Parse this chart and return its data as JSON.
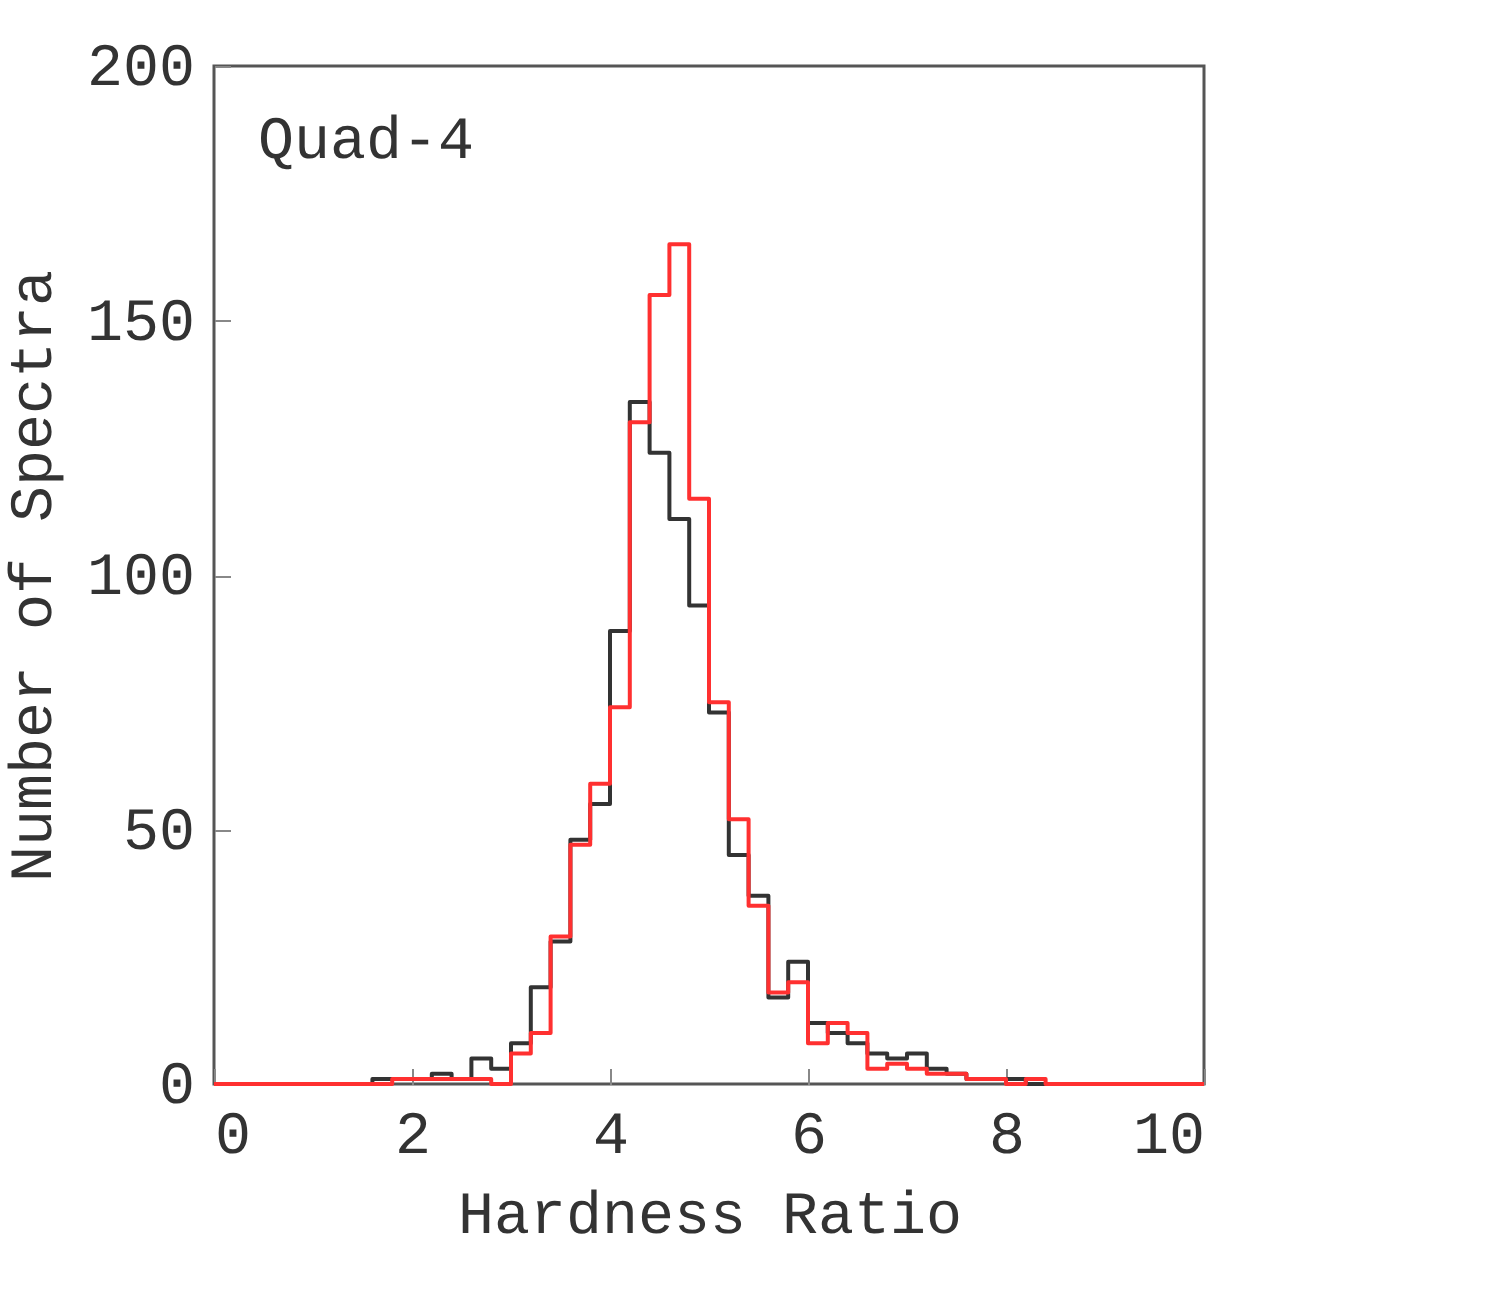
{
  "chart_data": {
    "type": "histogram",
    "xlabel": "Hardness Ratio",
    "ylabel": "Number of Spectra",
    "annotations": [
      "Quad-4"
    ],
    "bins": [
      0,
      0.2,
      0.4,
      0.6,
      0.8,
      1,
      1.2,
      1.4,
      1.6,
      1.8,
      2,
      2.2,
      2.4,
      2.6,
      2.8,
      3,
      3.2,
      3.4,
      3.6,
      3.8,
      4,
      4.2,
      4.4,
      4.6,
      4.8,
      5,
      5.2,
      5.4,
      5.6,
      5.8,
      6,
      6.2,
      6.4,
      6.6,
      6.8,
      7,
      7.2,
      7.4,
      7.6,
      7.8,
      8,
      8.2,
      8.4,
      8.6,
      8.8,
      9,
      9.2,
      9.4,
      9.6,
      9.8,
      10
    ],
    "series": [
      {
        "color": "#333333",
        "values": [
          0,
          0,
          0,
          0,
          0,
          0,
          0,
          0,
          1,
          1,
          1,
          2,
          1,
          5,
          3,
          8,
          19,
          28,
          48,
          55,
          89,
          134,
          124,
          111,
          94,
          73,
          45,
          37,
          17,
          24,
          12,
          10,
          8,
          6,
          5,
          6,
          3,
          2,
          1,
          1,
          1,
          0,
          0,
          0,
          0,
          0,
          0,
          0,
          0,
          0
        ]
      },
      {
        "color": "#ff3030",
        "values": [
          0,
          0,
          0,
          0,
          0,
          0,
          0,
          0,
          0,
          1,
          1,
          1,
          1,
          1,
          0,
          6,
          10,
          29,
          47,
          59,
          74,
          130,
          155,
          165,
          115,
          75,
          52,
          35,
          18,
          20,
          8,
          12,
          10,
          3,
          4,
          3,
          2,
          2,
          1,
          1,
          0,
          1,
          0,
          0,
          0,
          0,
          0,
          0,
          0,
          0
        ]
      }
    ],
    "xlim": [
      0,
      10
    ],
    "xticks": [
      0,
      2,
      4,
      6,
      8,
      10
    ],
    "ylim": [
      0,
      200
    ],
    "yticks": [
      0,
      50,
      100,
      150,
      200
    ]
  }
}
